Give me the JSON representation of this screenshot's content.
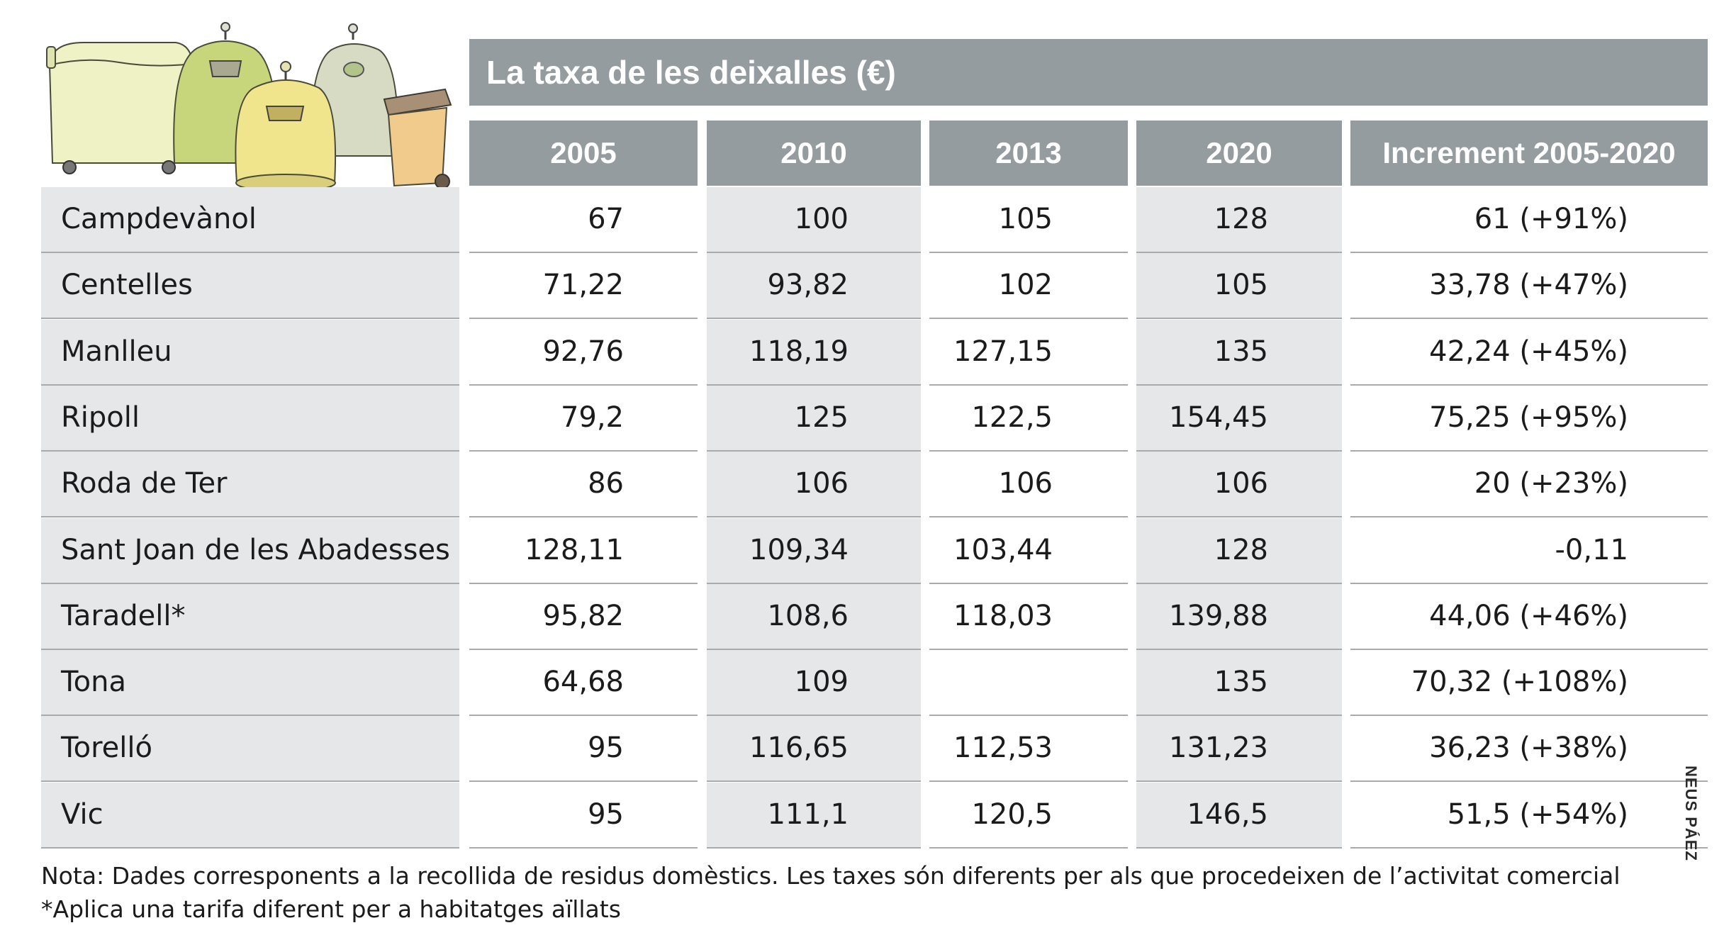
{
  "chart_data": {
    "type": "table",
    "title": "La taxa de les deixalles (€)",
    "columns": [
      "",
      "2005",
      "2010",
      "2013",
      "2020",
      "Increment 2005-2020"
    ],
    "rows": [
      {
        "municipality": "Campdevànol",
        "values": [
          "67",
          "100",
          "105",
          "128",
          "61 (+91%)"
        ]
      },
      {
        "municipality": "Centelles",
        "values": [
          "71,22",
          "93,82",
          "102",
          "105",
          "33,78 (+47%)"
        ]
      },
      {
        "municipality": "Manlleu",
        "values": [
          "92,76",
          "118,19",
          "127,15",
          "135",
          "42,24 (+45%)"
        ]
      },
      {
        "municipality": "Ripoll",
        "values": [
          "79,2",
          "125",
          "122,5",
          "154,45",
          "75,25 (+95%)"
        ]
      },
      {
        "municipality": "Roda de Ter",
        "values": [
          "86",
          "106",
          "106",
          "106",
          "20 (+23%)"
        ]
      },
      {
        "municipality": "Sant Joan de les Abadesses",
        "values": [
          "128,11",
          "109,34",
          "103,44",
          "128",
          "-0,11"
        ]
      },
      {
        "municipality": "Taradell*",
        "values": [
          "95,82",
          "108,6",
          "118,03",
          "139,88",
          "44,06 (+46%)"
        ]
      },
      {
        "municipality": "Tona",
        "values": [
          "64,68",
          "109",
          "",
          "135",
          "70,32 (+108%)"
        ]
      },
      {
        "municipality": "Torelló",
        "values": [
          "95",
          "116,65",
          "112,53",
          "131,23",
          "36,23 (+38%)"
        ]
      },
      {
        "municipality": "Vic",
        "values": [
          "95",
          "111,1",
          "120,5",
          "146,5",
          "51,5 (+54%)"
        ]
      }
    ],
    "notes": [
      "Nota: Dades corresponents a la recollida de residus domèstics. Les taxes són diferents per als que procedeixen de l’activitat comercial",
      "*Aplica una tarifa diferent per a habitatges aïllats"
    ],
    "credit": "NEUS PÁEZ"
  },
  "colors": {
    "header": "#959c9f",
    "name_column": "#e6e7e8",
    "divider": "#a8abad",
    "text": "#1b1b1b"
  }
}
